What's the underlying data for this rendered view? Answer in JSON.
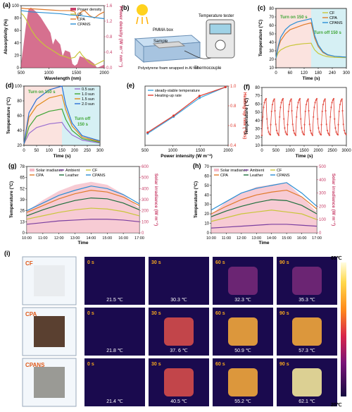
{
  "colors": {
    "cf": "#c9c63a",
    "cpa": "#e07a2a",
    "cpans": "#2b8fd4",
    "power": "#c8406a",
    "heat_bg": "#fbe3df",
    "cool_bg": "#d6f0f4",
    "green_text": "#3fa535",
    "orange_text": "#e08a19",
    "ambient": "#7b3fa0",
    "leather": "#1d6e3c",
    "solar": "#c8406a",
    "red_series": "#e03a2e",
    "blue_series": "#3aa5e0"
  },
  "chart_data": [
    {
      "id": "a",
      "panel_label": "(a)",
      "type": "line",
      "xlabel": "Wavelength (nm)",
      "ylabel": "Absorptivity (%)",
      "y2label": "Power density (W m⁻² nm⁻¹)",
      "xlim": [
        300,
        2000
      ],
      "ylim": [
        0,
        100
      ],
      "y2lim": [
        0,
        1.6
      ],
      "xticks": [
        "500",
        "1000",
        "1500",
        "2000"
      ],
      "yticks": [
        "0",
        "20",
        "40",
        "60",
        "80",
        "100"
      ],
      "y2ticks": [
        "0.0",
        "0.4",
        "0.8",
        "1.2",
        "1.6"
      ],
      "legend": [
        "Power density",
        "CF",
        "CPA",
        "CPANS"
      ],
      "series": [
        {
          "name": "CF",
          "x": [
            300,
            350,
            400,
            450,
            500,
            600,
            700,
            800,
            900,
            1000,
            1100,
            1200,
            1300,
            1400,
            1450,
            1500,
            1550,
            1600,
            1700,
            1800,
            1900,
            2000
          ],
          "y": [
            88,
            84,
            78,
            70,
            62,
            50,
            42,
            35,
            30,
            25,
            20,
            18,
            15,
            17,
            22,
            26,
            20,
            16,
            8,
            4,
            8,
            12
          ]
        },
        {
          "name": "CPA",
          "x": [
            300,
            400,
            500,
            700,
            900,
            1100,
            1300,
            1400,
            1450,
            1500,
            1550,
            1600,
            1700,
            1800,
            1900,
            2000
          ],
          "y": [
            96,
            95,
            95,
            94,
            93,
            92,
            92,
            90,
            80,
            88,
            91,
            92,
            84,
            80,
            86,
            90
          ]
        },
        {
          "name": "CPANS",
          "x": [
            300,
            500,
            700,
            900,
            1100,
            1300,
            1500,
            1700,
            1900,
            2000
          ],
          "y": [
            92,
            90,
            89,
            88,
            87,
            85,
            84,
            82,
            80,
            79
          ]
        }
      ],
      "power_density": {
        "x": [
          300,
          350,
          400,
          450,
          500,
          550,
          600,
          700,
          800,
          900,
          950,
          1000,
          1100,
          1150,
          1200,
          1300,
          1350,
          1400,
          1450,
          1500,
          1600,
          1700,
          1800,
          1850,
          1900,
          2000
        ],
        "y": [
          0.1,
          0.6,
          1.1,
          1.5,
          1.55,
          1.5,
          1.45,
          1.3,
          1.1,
          0.9,
          0.6,
          0.75,
          0.6,
          0.3,
          0.45,
          0.4,
          0.1,
          0.05,
          0.1,
          0.3,
          0.25,
          0.2,
          0.1,
          0.0,
          0.02,
          0.08
        ]
      }
    },
    {
      "id": "c",
      "panel_label": "(c)",
      "type": "line",
      "xlabel": "Time (s)",
      "ylabel": "Temperature (°C)",
      "xlim": [
        0,
        300
      ],
      "ylim": [
        10,
        80
      ],
      "xticks": [
        "0",
        "60",
        "120",
        "180",
        "240",
        "300"
      ],
      "yticks": [
        "10",
        "20",
        "30",
        "40",
        "50",
        "60",
        "70",
        "80"
      ],
      "annotations": [
        "Turn on 150 s",
        "Turn off 150 s"
      ],
      "legend": [
        "CF",
        "CPA",
        "CPANS"
      ],
      "series": [
        {
          "name": "CF",
          "x": [
            0,
            10,
            20,
            40,
            60,
            90,
            120,
            150,
            155,
            165,
            180,
            200,
            220,
            250,
            300
          ],
          "y": [
            21.5,
            28,
            31,
            34,
            36,
            37.5,
            38.5,
            39,
            36,
            31,
            27,
            24.5,
            23,
            22.3,
            22
          ]
        },
        {
          "name": "CPA",
          "x": [
            0,
            10,
            20,
            40,
            60,
            90,
            120,
            150,
            155,
            165,
            180,
            200,
            220,
            250,
            300
          ],
          "y": [
            21.8,
            34,
            42,
            50,
            55,
            58,
            61,
            63,
            57,
            45,
            35,
            28,
            25,
            23.5,
            22.5
          ]
        },
        {
          "name": "CPANS",
          "x": [
            0,
            10,
            20,
            40,
            60,
            90,
            120,
            150,
            155,
            165,
            180,
            200,
            220,
            250,
            300
          ],
          "y": [
            21.4,
            36,
            46,
            55,
            60,
            64,
            66,
            68,
            61,
            48,
            37,
            29,
            25.5,
            23.5,
            22.5
          ]
        }
      ]
    },
    {
      "id": "d",
      "panel_label": "(d)",
      "type": "line",
      "xlabel": "Time (s)",
      "ylabel": "Temperature (°C)",
      "xlim": [
        0,
        300
      ],
      "ylim": [
        20,
        100
      ],
      "xticks": [
        "0",
        "50",
        "100",
        "150",
        "200",
        "250",
        "300"
      ],
      "yticks": [
        "20",
        "40",
        "60",
        "80",
        "100"
      ],
      "annotations": [
        "Turn on 150 s",
        "Turn off",
        "150 s"
      ],
      "legend": [
        "0.5 sun",
        "1.0 sun",
        "1.5 sun",
        "2.0 sun"
      ],
      "series": [
        {
          "name": "0.5 sun",
          "x": [
            0,
            20,
            50,
            100,
            150,
            165,
            190,
            230,
            300
          ],
          "y": [
            22,
            36,
            44,
            49,
            51,
            43,
            34,
            27,
            23
          ]
        },
        {
          "name": "1.0 sun",
          "x": [
            0,
            20,
            50,
            100,
            150,
            165,
            190,
            230,
            300
          ],
          "y": [
            22,
            45,
            59,
            66,
            69,
            55,
            40,
            29,
            24
          ]
        },
        {
          "name": "1.5 sun",
          "x": [
            0,
            20,
            50,
            100,
            150,
            165,
            190,
            230,
            300
          ],
          "y": [
            22,
            58,
            73,
            84,
            88,
            68,
            46,
            31,
            25
          ]
        },
        {
          "name": "2.0 sun",
          "x": [
            0,
            20,
            50,
            100,
            150,
            165,
            190,
            230,
            300
          ],
          "y": [
            22,
            64,
            82,
            95,
            100,
            75,
            50,
            33,
            26
          ]
        }
      ]
    },
    {
      "id": "e",
      "panel_label": "(e)",
      "type": "line",
      "xlabel": "Power intensity (W m⁻²)",
      "ylabel": "steady-stable temperature",
      "y2label": "Heating-up rate (°C/s)",
      "xlim": [
        450,
        2050
      ],
      "ylim": [
        40,
        100
      ],
      "y2lim": [
        0.4,
        1.0
      ],
      "xticks": [
        "500",
        "1000",
        "1500",
        "2000"
      ],
      "y2ticks": [
        "0.4",
        "0.6",
        "0.8",
        "1.0"
      ],
      "legend": [
        "steady-stable temperature",
        "Heating-up rate"
      ],
      "series": [
        {
          "name": "steady-stable temperature",
          "x": [
            500,
            1000,
            1500,
            2000
          ],
          "y": [
            52,
            69,
            88,
            99
          ]
        },
        {
          "name": "Heating-up rate",
          "x": [
            500,
            1000,
            1500,
            2000
          ],
          "y": [
            0.53,
            0.7,
            0.9,
            0.99
          ]
        }
      ]
    },
    {
      "id": "f",
      "panel_label": "(f)",
      "type": "line",
      "xlabel": "Time (s)",
      "ylabel": "Temperature (°C)",
      "xlim": [
        0,
        3000
      ],
      "ylim": [
        10,
        80
      ],
      "xticks": [
        "0",
        "500",
        "1000",
        "1500",
        "2000",
        "2500",
        "3000"
      ],
      "yticks": [
        "10",
        "20",
        "30",
        "40",
        "50",
        "60",
        "70",
        "80"
      ],
      "cycles": 10,
      "cycle_min": 22,
      "cycle_max": 68
    },
    {
      "id": "g",
      "panel_label": "(g)",
      "type": "area",
      "xlabel": "Time",
      "ylabel": "Temperature (°C)",
      "y2label": "Solar irradiance (W m⁻²)",
      "ylim": [
        0,
        78
      ],
      "y2lim": [
        0,
        650
      ],
      "xticks": [
        "10:00",
        "11:00",
        "12:00",
        "13:00",
        "14:00",
        "15:00",
        "16:00",
        "17:00"
      ],
      "yticks": [
        "0",
        "13",
        "26",
        "39",
        "52",
        "65",
        "78"
      ],
      "y2ticks": [
        "0",
        "100",
        "200",
        "300",
        "400",
        "500",
        "600"
      ],
      "legend": [
        "Solar irradiance",
        "Ambient",
        "CF",
        "CPA",
        "Leather",
        "CPANS"
      ],
      "series": [
        {
          "name": "Solar irradiance",
          "x": [
            10,
            11,
            12,
            13,
            14,
            15,
            16,
            17
          ],
          "y": [
            210,
            320,
            410,
            470,
            500,
            470,
            380,
            240
          ]
        },
        {
          "name": "Ambient",
          "x": [
            10,
            11,
            12,
            13,
            14,
            15,
            16,
            17
          ],
          "y": [
            10,
            12,
            14,
            15,
            16,
            16,
            15,
            13
          ]
        },
        {
          "name": "CF",
          "x": [
            10,
            11,
            12,
            13,
            14,
            15,
            16,
            17
          ],
          "y": [
            16,
            20,
            24,
            27,
            29,
            28,
            25,
            20
          ]
        },
        {
          "name": "CPA",
          "x": [
            10,
            11,
            12,
            13,
            14,
            15,
            16,
            17
          ],
          "y": [
            24,
            32,
            40,
            46,
            50,
            48,
            42,
            32
          ]
        },
        {
          "name": "Leather",
          "x": [
            10,
            11,
            12,
            13,
            14,
            15,
            16,
            17
          ],
          "y": [
            20,
            27,
            33,
            38,
            41,
            40,
            35,
            27
          ]
        },
        {
          "name": "CPANS",
          "x": [
            10,
            11,
            12,
            13,
            14,
            15,
            16,
            17
          ],
          "y": [
            26,
            35,
            44,
            50,
            55,
            52,
            45,
            34
          ]
        }
      ]
    },
    {
      "id": "h",
      "panel_label": "(h)",
      "type": "area",
      "xlabel": "Time",
      "ylabel": "Temperature (°C)",
      "y2label": "Solar irradiance (W m⁻²)",
      "ylim": [
        0,
        70
      ],
      "y2lim": [
        0,
        550
      ],
      "xticks": [
        "10:00",
        "11:00",
        "12:00",
        "13:00",
        "14:00",
        "15:00",
        "16:00",
        "17:00"
      ],
      "yticks": [
        "0",
        "10",
        "20",
        "30",
        "40",
        "50",
        "60",
        "70"
      ],
      "y2ticks": [
        "0",
        "100",
        "200",
        "300",
        "400",
        "500"
      ],
      "legend": [
        "Solar irradiance",
        "Ambient",
        "CF",
        "CPA",
        "Leather",
        "CPANS"
      ],
      "series": [
        {
          "name": "Solar irradiance",
          "x": [
            10,
            11,
            12,
            13,
            14,
            15,
            16,
            17
          ],
          "y": [
            150,
            260,
            330,
            380,
            400,
            420,
            300,
            170
          ]
        },
        {
          "name": "Ambient",
          "x": [
            10,
            11,
            12,
            13,
            14,
            15,
            16,
            17
          ],
          "y": [
            5,
            6,
            7,
            8,
            9,
            9,
            8,
            7
          ]
        },
        {
          "name": "CF",
          "x": [
            10,
            11,
            12,
            13,
            14,
            15,
            16,
            17
          ],
          "y": [
            12,
            16,
            20,
            22,
            24,
            22,
            20,
            14
          ]
        },
        {
          "name": "CPA",
          "x": [
            10,
            11,
            12,
            13,
            14,
            15,
            16,
            17
          ],
          "y": [
            20,
            28,
            35,
            40,
            43,
            45,
            38,
            25
          ]
        },
        {
          "name": "Leather",
          "x": [
            10,
            11,
            12,
            13,
            14,
            15,
            16,
            17
          ],
          "y": [
            17,
            23,
            28,
            32,
            35,
            34,
            29,
            20
          ]
        },
        {
          "name": "CPANS",
          "x": [
            10,
            11,
            12,
            13,
            14,
            15,
            16,
            17
          ],
          "y": [
            24,
            33,
            42,
            47,
            50,
            53,
            42,
            28
          ]
        }
      ]
    }
  ],
  "panel_b": {
    "label": "(b)",
    "box_label": "PMMA box",
    "sample_label": "Sample",
    "foam_label": "Polystyrene foam wrapped in Al foil",
    "tester_label": "Temperature tester",
    "thermo_label": "Thermocouple"
  },
  "panel_i": {
    "label": "(i)",
    "rows": [
      {
        "name": "CF",
        "temps": [
          "21.5 ℃",
          "30.3 ℃",
          "32.3 ℃",
          "35.3 ℃"
        ],
        "heat": [
          0,
          0.05,
          0.07,
          0.1
        ]
      },
      {
        "name": "CPA",
        "temps": [
          "21.8 ℃",
          "37. 6 ℃",
          "50.9 ℃",
          "57.3 ℃"
        ],
        "heat": [
          0,
          0.4,
          0.65,
          0.8
        ]
      },
      {
        "name": "CPANS",
        "temps": [
          "21.4 ℃",
          "40.5 ℃",
          "55.2 ℃",
          "62.1 ℃"
        ],
        "heat": [
          0,
          0.55,
          0.8,
          0.95
        ]
      }
    ],
    "times": [
      "0 s",
      "30 s",
      "60 s",
      "90 s"
    ],
    "scale_max": "65℃",
    "scale_min": "20℃"
  }
}
